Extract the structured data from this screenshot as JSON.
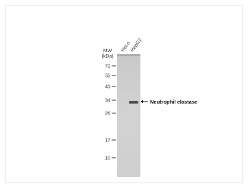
{
  "figure": {
    "mw_label": "MW",
    "unit_label": "(kDa)",
    "lanes": [
      "HeLa",
      "HepG2"
    ],
    "markers": [
      "72",
      "55",
      "43",
      "34",
      "26",
      "17",
      "10"
    ],
    "target_label": "Neutrophil elastase"
  }
}
